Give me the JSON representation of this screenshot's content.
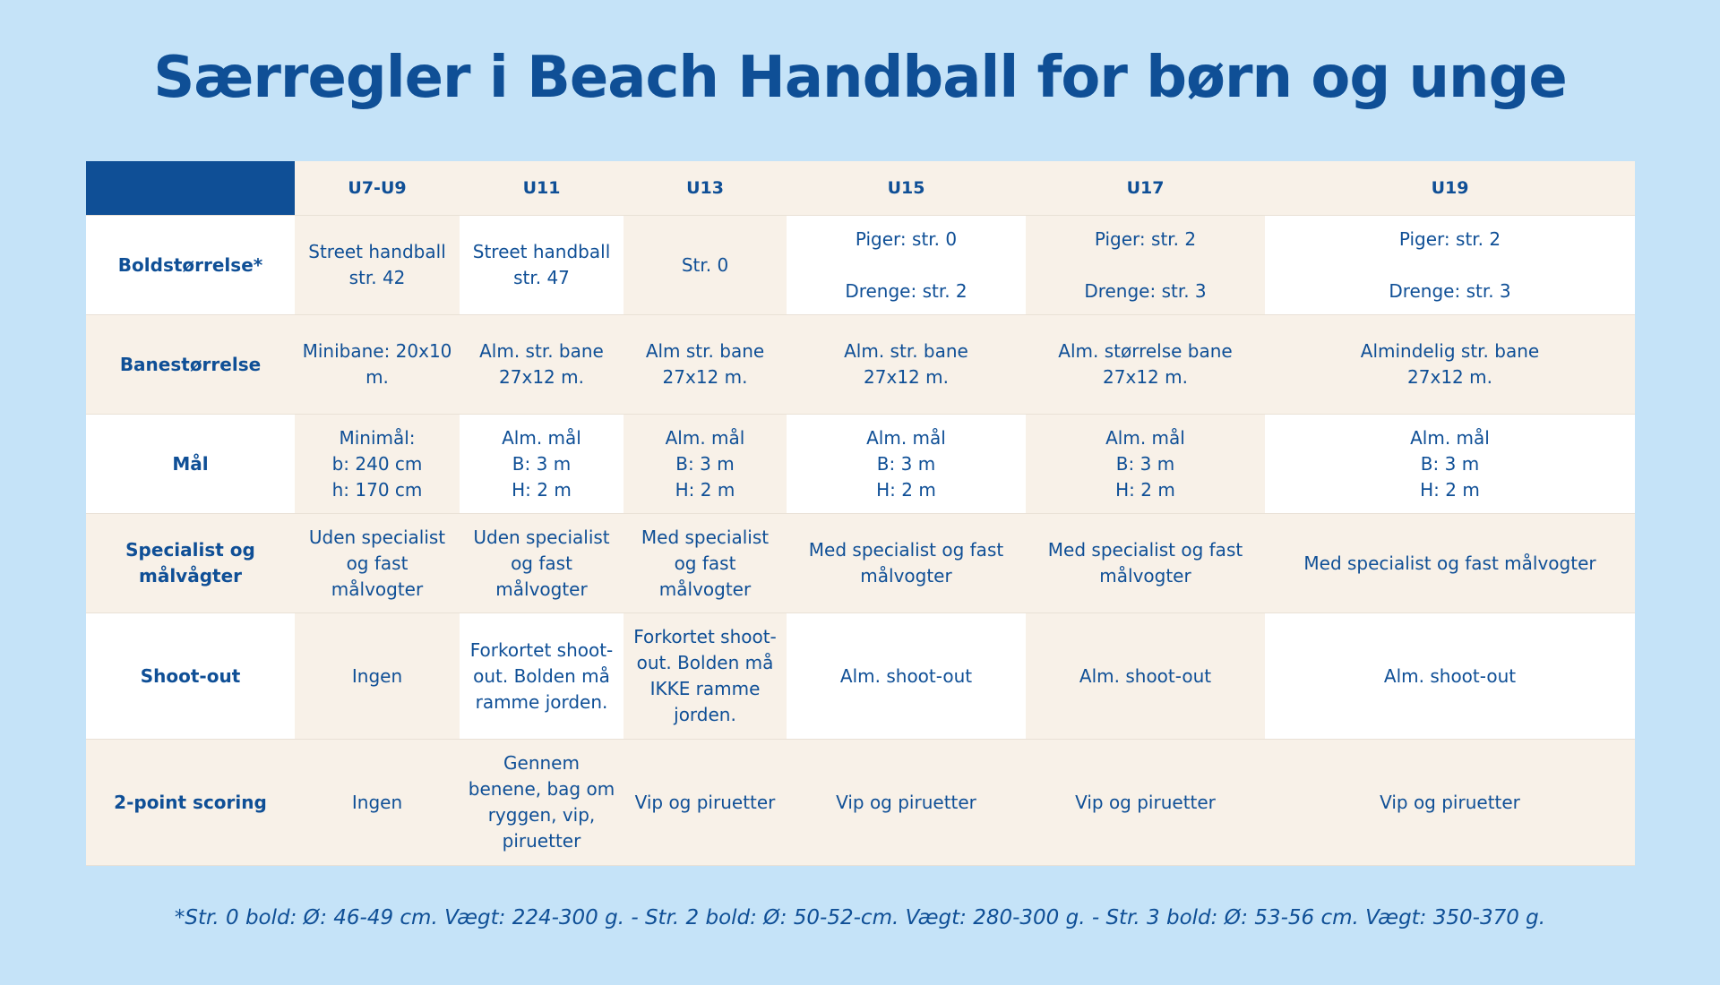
{
  "header": {
    "title": "Særregler i Beach Handball for børn og unge"
  },
  "table": {
    "columns": [
      "U7-U9",
      "U11",
      "U13",
      "U15",
      "U17",
      "U19"
    ],
    "rows": [
      {
        "label": "Boldstørrelse*",
        "cells": [
          "Street handball str. 42",
          "Street handball str. 47",
          "Str. 0",
          "Piger: str. 0\n\nDrenge: str. 2",
          "Piger: str. 2\n\nDrenge: str. 3",
          "Piger: str. 2\n\nDrenge: str. 3"
        ]
      },
      {
        "label": "Banestørrelse",
        "cells": [
          "Minibane: 20x10 m.",
          "Alm. str. bane 27x12 m.",
          "Alm str. bane 27x12 m.",
          "Alm. str. bane\n27x12 m.",
          "Alm. størrelse bane\n27x12 m.",
          "Almindelig str. bane\n27x12 m."
        ]
      },
      {
        "label": "Mål",
        "cells": [
          "Minimål:\nb: 240 cm\nh: 170 cm",
          "Alm. mål\nB: 3 m\nH: 2 m",
          "Alm. mål\nB: 3 m\nH: 2 m",
          "Alm. mål\nB: 3 m\nH: 2 m",
          "Alm. mål\nB: 3 m\nH: 2 m",
          "Alm. mål\nB: 3 m\nH: 2 m"
        ]
      },
      {
        "label": "Specialist og målvågter",
        "cells": [
          "Uden specialist og fast målvogter",
          "Uden specialist og fast målvogter",
          "Med specialist og fast målvogter",
          "Med specialist og fast målvogter",
          "Med specialist og fast målvogter",
          "Med specialist og fast målvogter"
        ]
      },
      {
        "label": "Shoot-out",
        "cells": [
          "Ingen",
          "Forkortet shoot-out. Bolden må ramme jorden.",
          "Forkortet shoot-out. Bolden må IKKE ramme jorden.",
          "Alm. shoot-out",
          "Alm. shoot-out",
          "Alm. shoot-out"
        ]
      },
      {
        "label": "2-point scoring",
        "cells": [
          "Ingen",
          "Gennem benene, bag om ryggen, vip, piruetter",
          "Vip og piruetter",
          "Vip og piruetter",
          "Vip og piruetter",
          "Vip og piruetter"
        ]
      }
    ]
  },
  "footnote": "*Str. 0 bold: Ø: 46-49 cm. Vægt: 224-300 g. - Str. 2 bold: Ø: 50-52-cm. Vægt: 280-300 g. - Str. 3 bold: Ø: 53-56 cm. Vægt: 350-370 g."
}
